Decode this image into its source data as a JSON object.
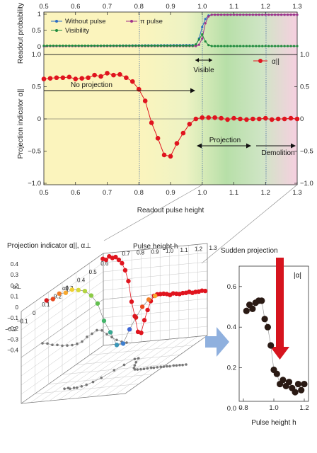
{
  "chart_data": [
    {
      "type": "line",
      "panel": "top",
      "xlim": [
        0.5,
        1.3
      ],
      "ylim": [
        0,
        1
      ],
      "xticks": [
        "0.5",
        "0.6",
        "0.7",
        "0.8",
        "0.9",
        "1.0",
        "1.1",
        "1.2",
        "1.3"
      ],
      "yticks": [
        "0",
        "0.5",
        "1"
      ],
      "ylabel": "Readout probability",
      "series": [
        {
          "name": "Without pulse",
          "color": "#2b6cc4",
          "x": [
            0.5,
            0.98,
            0.99,
            1.0,
            1.01,
            1.02,
            1.03,
            1.3
          ],
          "y": [
            0.02,
            0.05,
            0.25,
            0.6,
            0.85,
            0.96,
            0.98,
            0.98
          ]
        },
        {
          "name": "π pulse",
          "color": "#a0308a",
          "x": [
            0.5,
            0.98,
            0.99,
            1.0,
            1.01,
            1.02,
            1.03,
            1.3
          ],
          "y": [
            0.02,
            0.02,
            0.06,
            0.25,
            0.72,
            0.93,
            0.98,
            0.98
          ]
        },
        {
          "name": "Visibility",
          "color": "#1e8a3c",
          "x": [
            0.5,
            0.97,
            0.98,
            0.99,
            1.0,
            1.01,
            1.02,
            1.03,
            1.05,
            1.3
          ],
          "y": [
            0.03,
            0.03,
            0.07,
            0.22,
            0.38,
            0.16,
            0.05,
            0.02,
            0.02,
            0.02
          ]
        }
      ]
    },
    {
      "type": "line",
      "panel": "middle",
      "xlim": [
        0.5,
        1.3
      ],
      "ylim": [
        -1.1,
        1.1
      ],
      "xticks": [
        "0.5",
        "0.6",
        "0.7",
        "0.8",
        "0.9",
        "1.0",
        "1.1",
        "1.2",
        "1.3"
      ],
      "yticks": [
        "−1.0",
        "−0.5",
        "0",
        "0.5",
        "1.0"
      ],
      "ylabel": "Projection indicator α||",
      "xlabel": "Readout pulse height",
      "legend": "α||",
      "series": [
        {
          "name": "α||",
          "color": "#e0141e",
          "x": [
            0.5,
            0.52,
            0.54,
            0.56,
            0.58,
            0.6,
            0.62,
            0.64,
            0.66,
            0.68,
            0.7,
            0.72,
            0.74,
            0.76,
            0.78,
            0.8,
            0.82,
            0.84,
            0.86,
            0.88,
            0.9,
            0.92,
            0.94,
            0.96,
            0.98,
            1.0,
            1.02,
            1.04,
            1.06,
            1.08,
            1.1,
            1.12,
            1.14,
            1.16,
            1.18,
            1.2,
            1.22,
            1.24,
            1.26,
            1.28,
            1.3
          ],
          "y": [
            0.62,
            0.63,
            0.64,
            0.64,
            0.65,
            0.62,
            0.63,
            0.64,
            0.68,
            0.66,
            0.71,
            0.68,
            0.69,
            0.64,
            0.58,
            0.46,
            0.28,
            -0.06,
            -0.3,
            -0.56,
            -0.58,
            -0.38,
            -0.22,
            -0.08,
            0.0,
            0.02,
            0.02,
            0.02,
            0.01,
            -0.01,
            0.01,
            0.0,
            -0.01,
            0.0,
            0.0,
            0.01,
            -0.01,
            0.0,
            0.0,
            0.01,
            0.0
          ]
        }
      ]
    },
    {
      "type": "scatter",
      "panel": "3d",
      "xlabel": "Pulse height h",
      "ylabel": "α⊥",
      "zlabel": "α∥",
      "xticks": [
        "0.7",
        "0.8",
        "0.9",
        "1.0",
        "1.1",
        "1.2",
        "1.3"
      ],
      "zticks": [
        "0.4",
        "0.3",
        "0.2",
        "0.1",
        "0",
        "−0.1",
        "−0.2",
        "−0.3",
        "−0.4"
      ],
      "yticks": [
        "−0.2",
        "−0.1",
        "0",
        "0.1",
        "0.2",
        "0.3",
        "0.4",
        "0.5",
        "0.6"
      ]
    },
    {
      "type": "scatter",
      "panel": "inset",
      "xlim": [
        0.8,
        1.2
      ],
      "ylim": [
        -0.05,
        0.65
      ],
      "xticks": [
        "0.8",
        "1.0",
        "1.2"
      ],
      "yticks": [
        "0.0",
        "0.2",
        "0.4",
        "0.6"
      ],
      "xlabel": "Pulse height h",
      "series": [
        {
          "name": "|α|",
          "color": "#2a1a14",
          "x": [
            0.82,
            0.84,
            0.86,
            0.88,
            0.9,
            0.92,
            0.94,
            0.96,
            0.98,
            1.0,
            1.02,
            1.04,
            1.06,
            1.08,
            1.1,
            1.12,
            1.14,
            1.16,
            1.18,
            1.2
          ],
          "y": [
            0.48,
            0.51,
            0.49,
            0.52,
            0.53,
            0.53,
            0.44,
            0.4,
            0.31,
            0.19,
            0.17,
            0.12,
            0.14,
            0.11,
            0.13,
            0.1,
            0.08,
            0.12,
            0.09,
            0.12
          ]
        }
      ]
    }
  ],
  "labels": {
    "legend_without": "Without pulse",
    "legend_pi": "π pulse",
    "legend_visibility": "Visibility",
    "legend_alpha": "α||",
    "visible": "Visible",
    "no_projection": "No projection",
    "projection": "Projection",
    "demolition": "Demolition",
    "ylabel_top": "Readout probability",
    "ylabel_mid": "Projection indicator α||",
    "xlabel_mid": "Readout pulse height",
    "three_d_title": "Projection indicator α||, α⊥",
    "pulse_height_h": "Pulse height h",
    "alpha_perp": "α⊥",
    "alpha_par": "α∥",
    "sudden": "Sudden projection",
    "abs_alpha": "|α|",
    "inset_xlabel": "Pulse height h"
  },
  "colors": {
    "bg_yellow": "#fbf4bd",
    "bg_green": "#b7dfa8",
    "bg_pink": "#f6cfe0",
    "red": "#e0141e",
    "arrow_blue": "#8fb0de"
  }
}
